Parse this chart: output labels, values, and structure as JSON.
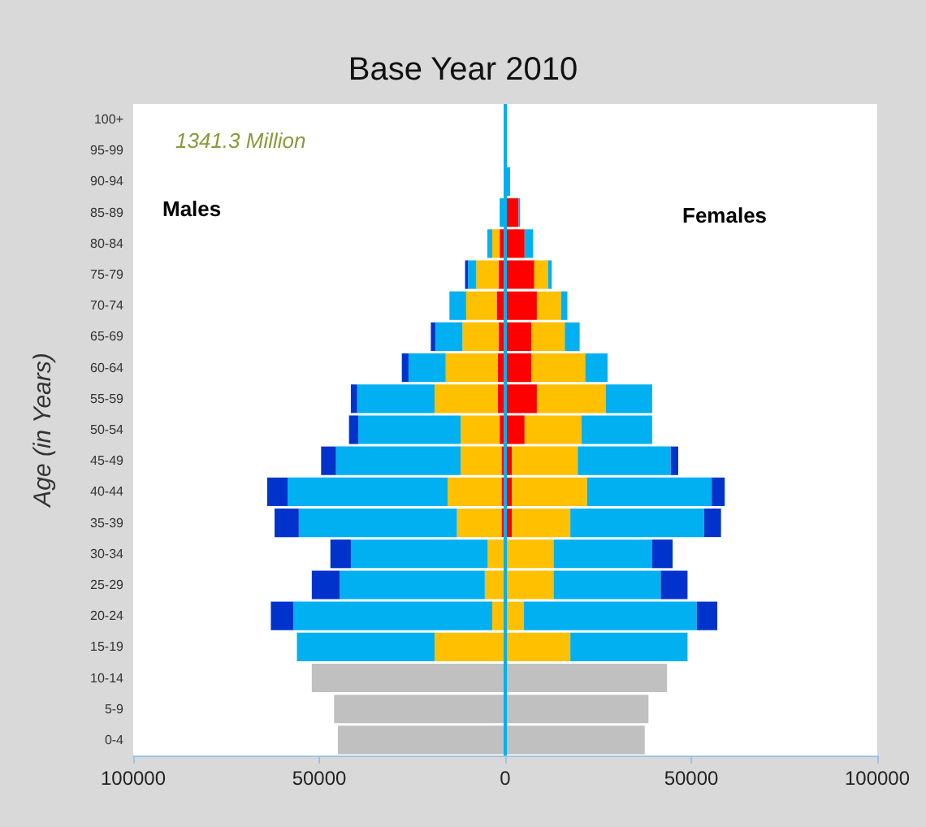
{
  "chart_data": {
    "type": "bar",
    "orientation": "horizontal",
    "stacked": true,
    "title": "Base Year 2010",
    "ylabel": "Age (in Years)",
    "annotations": [
      "1341.3 Million",
      "Males",
      "Females"
    ],
    "categories": [
      "100+",
      "95-99",
      "90-94",
      "85-89",
      "80-84",
      "75-79",
      "70-74",
      "65-69",
      "60-64",
      "55-59",
      "50-54",
      "45-49",
      "40-44",
      "35-39",
      "30-34",
      "25-29",
      "20-24",
      "15-19",
      "10-14",
      "5-9",
      "0-4"
    ],
    "series": [
      {
        "color": "#c0c0c0",
        "values": [
          null,
          null,
          null,
          null,
          null,
          null,
          null,
          null,
          null,
          null,
          null,
          null,
          null,
          null,
          null,
          null,
          null,
          null,
          -52000,
          -46000,
          -45000
        ]
      },
      {
        "color": "#ff0000",
        "values": [
          null,
          null,
          null,
          null,
          -1500,
          -1800,
          -2300,
          -1800,
          -2000,
          -2000,
          -1500,
          -1000,
          -1000,
          -1000,
          null,
          null,
          null,
          null,
          null,
          null,
          null
        ]
      },
      {
        "color": "#ffc000",
        "values": [
          null,
          null,
          null,
          null,
          -2000,
          -6000,
          -8200,
          -9700,
          -14000,
          -17000,
          -10500,
          -11000,
          -14500,
          -12000,
          -4700,
          -5500,
          -3500,
          -19000,
          null,
          null,
          null
        ]
      },
      {
        "color": "#00b0f0",
        "values": [
          null,
          null,
          null,
          -1500,
          -1300,
          -2200,
          -4500,
          -7300,
          -10000,
          -20800,
          -27500,
          -33500,
          -43000,
          -42500,
          -36800,
          -39000,
          -53500,
          -37000,
          null,
          null,
          null
        ]
      },
      {
        "color": "#0033cc",
        "values": [
          null,
          null,
          null,
          null,
          null,
          -800,
          null,
          -1200,
          -1800,
          -1700,
          -2500,
          -4000,
          -5500,
          -6500,
          -5500,
          -7500,
          -6000,
          null,
          null,
          null,
          null
        ]
      },
      {
        "color": "#c0c0c0",
        "values": [
          null,
          null,
          null,
          null,
          null,
          null,
          null,
          null,
          null,
          null,
          null,
          null,
          null,
          null,
          null,
          null,
          null,
          null,
          43500,
          38500,
          37500
        ]
      },
      {
        "color": "#ff0000",
        "values": [
          null,
          null,
          null,
          3600,
          5200,
          7800,
          8500,
          7000,
          7000,
          8500,
          5200,
          1800,
          1800,
          1800,
          null,
          null,
          null,
          null,
          null,
          null,
          null
        ]
      },
      {
        "color": "#ffc000",
        "values": [
          null,
          null,
          null,
          null,
          null,
          3700,
          6500,
          9000,
          14500,
          18500,
          15300,
          17700,
          20200,
          15700,
          13000,
          13000,
          5000,
          17500,
          null,
          null,
          null
        ]
      },
      {
        "color": "#00b0f0",
        "values": [
          null,
          null,
          1300,
          400,
          2300,
          1000,
          1700,
          4000,
          6000,
          12500,
          19000,
          25000,
          33500,
          36000,
          26500,
          28800,
          46500,
          31500,
          null,
          null,
          null
        ]
      },
      {
        "color": "#0033cc",
        "values": [
          null,
          null,
          null,
          null,
          null,
          null,
          null,
          null,
          null,
          null,
          null,
          2000,
          3500,
          4500,
          5500,
          7200,
          5500,
          null,
          null,
          null,
          null
        ]
      }
    ],
    "xlim": [
      -100000,
      100000
    ],
    "xticks": [
      {
        "value": -100000,
        "label": "100000"
      },
      {
        "value": -50000,
        "label": "50000"
      },
      0,
      50000,
      100000
    ],
    "ref_lines": [
      {
        "axis": "x",
        "value": 0,
        "color": "#00b0f0"
      }
    ],
    "grid": false
  }
}
